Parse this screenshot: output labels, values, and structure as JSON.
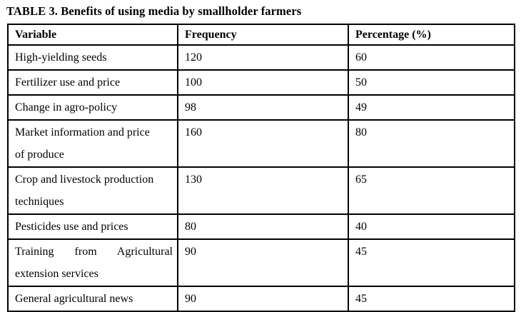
{
  "title": "TABLE 3. Benefits of using media by smallholder farmers",
  "table": {
    "columns": [
      "Variable",
      "Frequency",
      "Percentage (%)"
    ],
    "rows": [
      {
        "variable": [
          "High-yielding seeds"
        ],
        "frequency": "120",
        "percentage": "60"
      },
      {
        "variable": [
          "Fertilizer use and price"
        ],
        "frequency": "100",
        "percentage": "50"
      },
      {
        "variable": [
          "Change in agro-policy"
        ],
        "frequency": "98",
        "percentage": "49"
      },
      {
        "variable": [
          "Market information and price",
          "of produce"
        ],
        "frequency": "160",
        "percentage": "80"
      },
      {
        "variable": [
          "Crop and livestock production",
          "techniques"
        ],
        "frequency": "130",
        "percentage": "65"
      },
      {
        "variable": [
          "Pesticides use and prices"
        ],
        "frequency": "80",
        "percentage": "40"
      },
      {
        "variable": [
          "Training from Agricultural",
          "extension services"
        ],
        "frequency": "90",
        "percentage": "45"
      },
      {
        "variable": [
          "General agricultural news"
        ],
        "frequency": "90",
        "percentage": "45"
      }
    ]
  },
  "chart_data": {
    "type": "table",
    "title": "TABLE 3. Benefits of using media by smallholder farmers",
    "columns": [
      "Variable",
      "Frequency",
      "Percentage (%)"
    ],
    "rows": [
      [
        "High-yielding seeds",
        120,
        60
      ],
      [
        "Fertilizer use and price",
        100,
        50
      ],
      [
        "Change in agro-policy",
        98,
        49
      ],
      [
        "Market information and price of produce",
        160,
        80
      ],
      [
        "Crop and livestock production techniques",
        130,
        65
      ],
      [
        "Pesticides use and prices",
        80,
        40
      ],
      [
        "Training from Agricultural extension services",
        90,
        45
      ],
      [
        "General agricultural news",
        90,
        45
      ]
    ],
    "colors": {
      "text": "#000000",
      "border": "#000000",
      "background": "#ffffff"
    }
  }
}
